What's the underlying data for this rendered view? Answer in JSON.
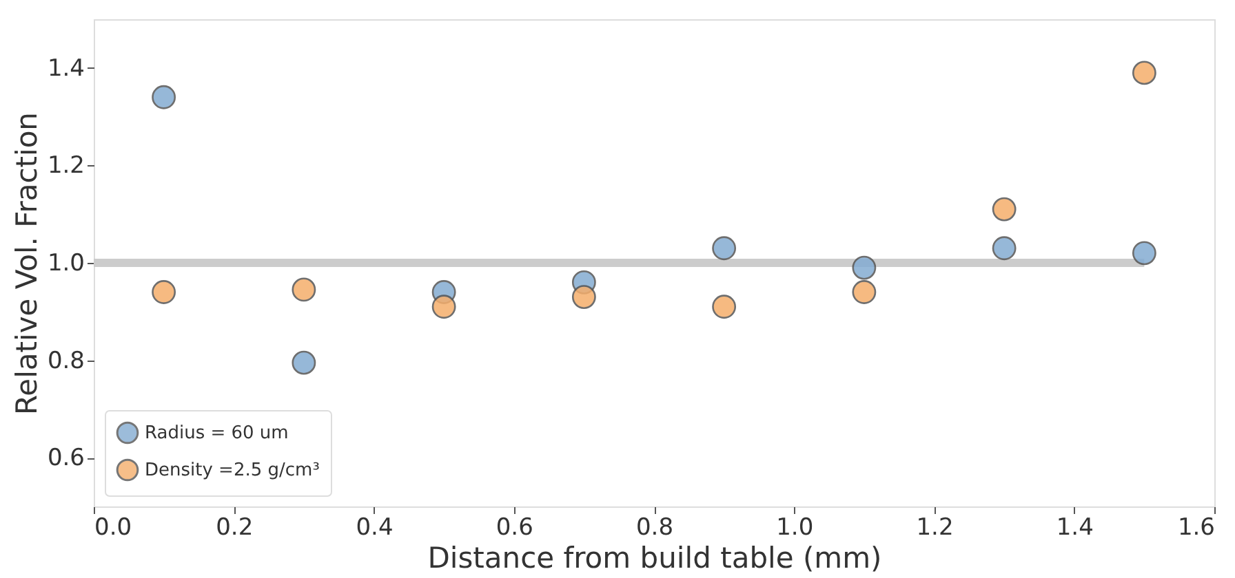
{
  "chart_data": {
    "type": "scatter",
    "xlabel": "Distance from build table (mm)",
    "ylabel": "Relative Vol. Fraction",
    "xlim": [
      0.0,
      1.6
    ],
    "xticks": [
      {
        "value": 0,
        "label": "0.0"
      },
      0.2,
      0.4,
      0.6,
      0.8,
      {
        "value": 1,
        "label": "1.0"
      },
      1.2,
      1.4,
      1.6
    ],
    "ylim": [
      0.5,
      1.5
    ],
    "yticks": [
      0.6,
      0.8,
      {
        "value": 1,
        "label": "1.0"
      },
      1.2,
      1.4
    ],
    "grid": false,
    "legend": "bottom left",
    "marker": "circle",
    "series": [
      {
        "type": "line",
        "color": "#cccccc",
        "marker": "none",
        "line_style": "solid",
        "x": [
          0.0,
          1.5
        ],
        "values": [
          1.0,
          1.0
        ]
      },
      {
        "name": "Radius = 60 um",
        "color": "#84acd2",
        "x": [
          0.1,
          0.3,
          0.5,
          0.7,
          0.9,
          1.1,
          1.3,
          1.5
        ],
        "values": [
          1.34,
          0.795,
          0.94,
          0.96,
          1.03,
          0.99,
          1.03,
          1.02
        ]
      },
      {
        "name": "Density =2.5 g/cm³",
        "color": "#f5ae6c",
        "x": [
          0.1,
          0.3,
          0.5,
          0.7,
          0.9,
          1.1,
          1.3,
          1.5
        ],
        "values": [
          0.94,
          0.945,
          0.91,
          0.93,
          0.91,
          0.94,
          1.11,
          1.39
        ]
      }
    ]
  }
}
